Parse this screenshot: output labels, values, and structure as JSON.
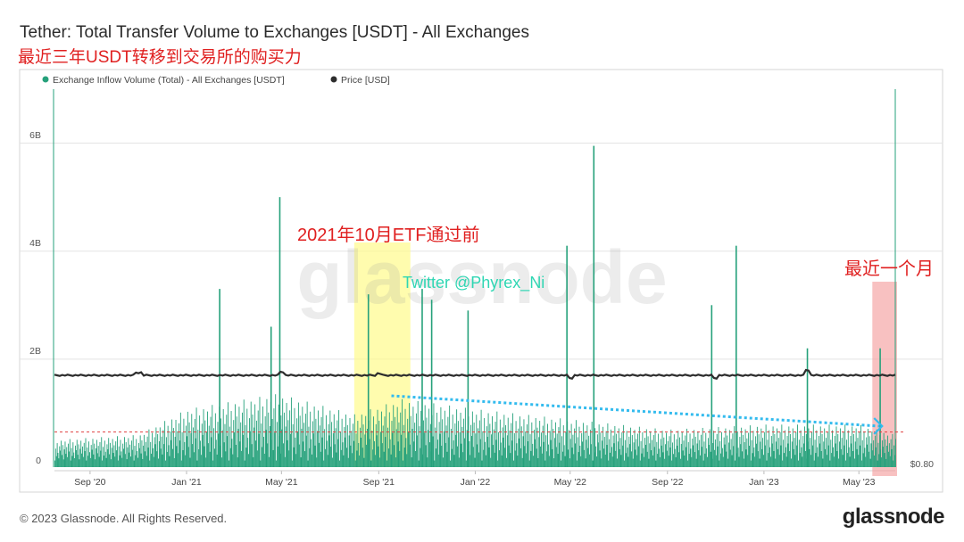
{
  "header": {
    "title": "Tether: Total Transfer Volume to Exchanges [USDT] - All Exchanges",
    "subtitle": "最近三年USDT转移到交易所的购买力"
  },
  "footer": {
    "copyright": "© 2023 Glassnode. All Rights Reserved.",
    "logo": "glassnode"
  },
  "colors": {
    "inflow": "#26a17b",
    "price": "#2d2d2d",
    "trend_arrow": "#33bbee",
    "etf_highlight": "#fffb8c",
    "recent_highlight": "#f5a0a0",
    "annotation_red": "#e02020",
    "watermark_twitter": "#2fd6b3"
  },
  "annotations": {
    "etf_label": "2021年10月ETF通过前",
    "recent_label": "最近一个月",
    "twitter": "Twitter @Phyrex_Ni",
    "watermark": "glassnode"
  },
  "chart_data": {
    "type": "bar",
    "title": "Tether: Total Transfer Volume to Exchanges [USDT] - All Exchanges",
    "legend": [
      {
        "name": "Exchange Inflow Volume (Total) - All Exchanges [USDT]",
        "color": "#26a17b"
      },
      {
        "name": "Price [USD]",
        "color": "#2d2d2d"
      }
    ],
    "legend_position": "top-left",
    "x_range": [
      "2020-08-01",
      "2023-06-30"
    ],
    "x_ticks": [
      "Sep '20",
      "Jan '21",
      "May '21",
      "Sep '21",
      "Jan '22",
      "May '22",
      "Sep '22",
      "Jan '23",
      "May '23"
    ],
    "y_ticks": [
      "0",
      "2B",
      "4B",
      "6B"
    ],
    "y_right_ticks": [
      "$0.80"
    ],
    "ylim": [
      0,
      7000000000
    ],
    "grid": true,
    "series": [
      {
        "name": "Exchange Inflow Volume (Total) - All Exchanges [USDT]",
        "type": "bar",
        "baseline": 350000000,
        "pattern": [
          0.0,
          0.55,
          0.2,
          0.8,
          0.35,
          0.1,
          0.65,
          0.45,
          0.9,
          0.25,
          0.7,
          0.05,
          0.5,
          0.85,
          0.3,
          0.6,
          0.15,
          0.75,
          0.4,
          0.95
        ],
        "envelope_dates": [
          "2020-08-01",
          "2020-11-15",
          "2021-01-15",
          "2021-05-10",
          "2021-08-15",
          "2021-10-15",
          "2022-01-15",
          "2022-05-15",
          "2022-09-15",
          "2023-01-15",
          "2023-05-15",
          "2023-06-30"
        ],
        "envelope_values": [
          400000000,
          500000000,
          1000000000,
          1300000000,
          900000000,
          1200000000,
          1000000000,
          800000000,
          600000000,
          700000000,
          700000000,
          500000000
        ],
        "spikes": [
          {
            "date": "2021-02-25",
            "value": 3300000000
          },
          {
            "date": "2021-05-01",
            "value": 2600000000
          },
          {
            "date": "2021-05-12",
            "value": 5000000000
          },
          {
            "date": "2021-09-01",
            "value": 3200000000
          },
          {
            "date": "2021-11-08",
            "value": 3300000000
          },
          {
            "date": "2021-11-20",
            "value": 3100000000
          },
          {
            "date": "2022-01-05",
            "value": 2900000000
          },
          {
            "date": "2022-05-10",
            "value": 4100000000
          },
          {
            "date": "2022-06-13",
            "value": 5950000000
          },
          {
            "date": "2022-11-09",
            "value": 3000000000
          },
          {
            "date": "2022-12-10",
            "value": 4100000000
          },
          {
            "date": "2023-03-10",
            "value": 2200000000
          },
          {
            "date": "2023-06-10",
            "value": 2200000000
          }
        ]
      },
      {
        "name": "Price [USD]",
        "type": "line",
        "values": [
          {
            "date": "2020-08-01",
            "value": 1.0
          },
          {
            "date": "2021-05-19",
            "value": 1.0
          },
          {
            "date": "2023-03-11",
            "value": 1.0
          },
          {
            "date": "2023-06-30",
            "value": 1.0
          }
        ]
      }
    ],
    "trend_line": {
      "from": {
        "date": "2021-10-01",
        "value": 1300000000
      },
      "to": {
        "date": "2023-06-10",
        "value": 700000000
      }
    },
    "reference_line": {
      "value": 650000000
    }
  }
}
